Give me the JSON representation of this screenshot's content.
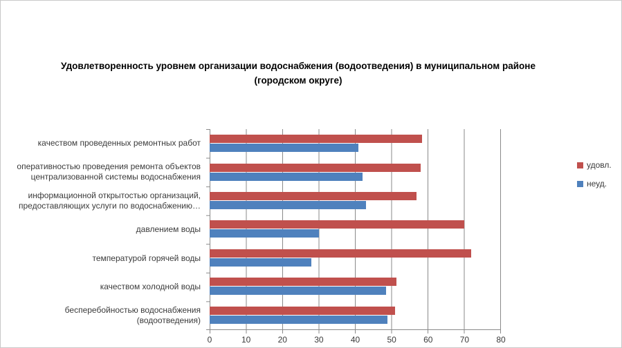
{
  "chart_data": {
    "type": "bar",
    "orientation": "horizontal",
    "title": "Удовлетворенность уровнем организации водоснабжения (водоотведения) в муниципальном районе (городском округе)",
    "categories": [
      "качеством проведенных ремонтных работ",
      "оперативностью проведения ремонта объектов централизованной системы водоснабжения",
      "информационной открытостью организаций, предоставляющих услуги по водоснабжению…",
      "давлением воды",
      "температурой горячей воды",
      "качеством холодной воды",
      "бесперебойностью водоснабжения (водоотведения)"
    ],
    "series": [
      {
        "name": "удовл.",
        "color": "#C0504D",
        "values": [
          58.5,
          58,
          57,
          70,
          72,
          51.5,
          51
        ]
      },
      {
        "name": "неуд.",
        "color": "#4F81BD",
        "values": [
          41,
          42,
          43,
          30,
          28,
          48.5,
          49
        ]
      }
    ],
    "xlim": [
      0,
      80
    ],
    "x_ticks": [
      0,
      10,
      20,
      30,
      40,
      50,
      60,
      70,
      80
    ],
    "grid": true,
    "legend_position": "middle-right"
  },
  "colors": {
    "axis": "#898989",
    "gridline": "#898989",
    "text": "#3A3A3A",
    "title": "#000000",
    "frame_border": "#C8C8C8",
    "background": "#FFFFFF"
  }
}
